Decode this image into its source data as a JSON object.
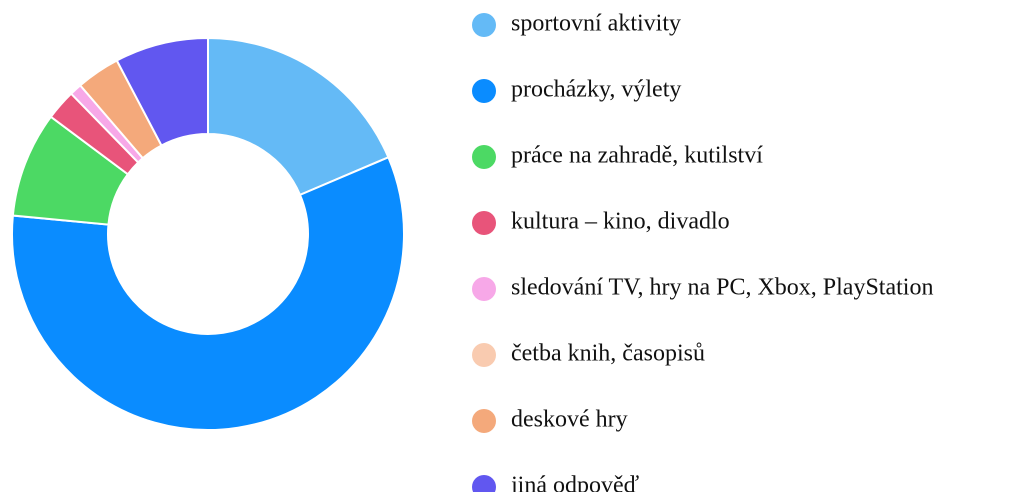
{
  "chart_data": {
    "type": "pie",
    "categories": [
      "sportovní aktivity",
      "procházky, výlety",
      "práce na zahradě, kutilství",
      "kultura – kino, divadlo",
      "sledování TV, hry na PC, Xbox, PlayStation",
      "četba knih, časopisů",
      "deskové hry",
      "jiná odpověď"
    ],
    "values": [
      18.6,
      57.9,
      8.7,
      2.5,
      1,
      0,
      3.6,
      7.7
    ],
    "colors": [
      "#64baf6",
      "#0a8cff",
      "#4cd964",
      "#e8547a",
      "#f7a8e8",
      "#f9cbb0",
      "#f4a97b",
      "#6157f0"
    ],
    "legend": "right"
  }
}
